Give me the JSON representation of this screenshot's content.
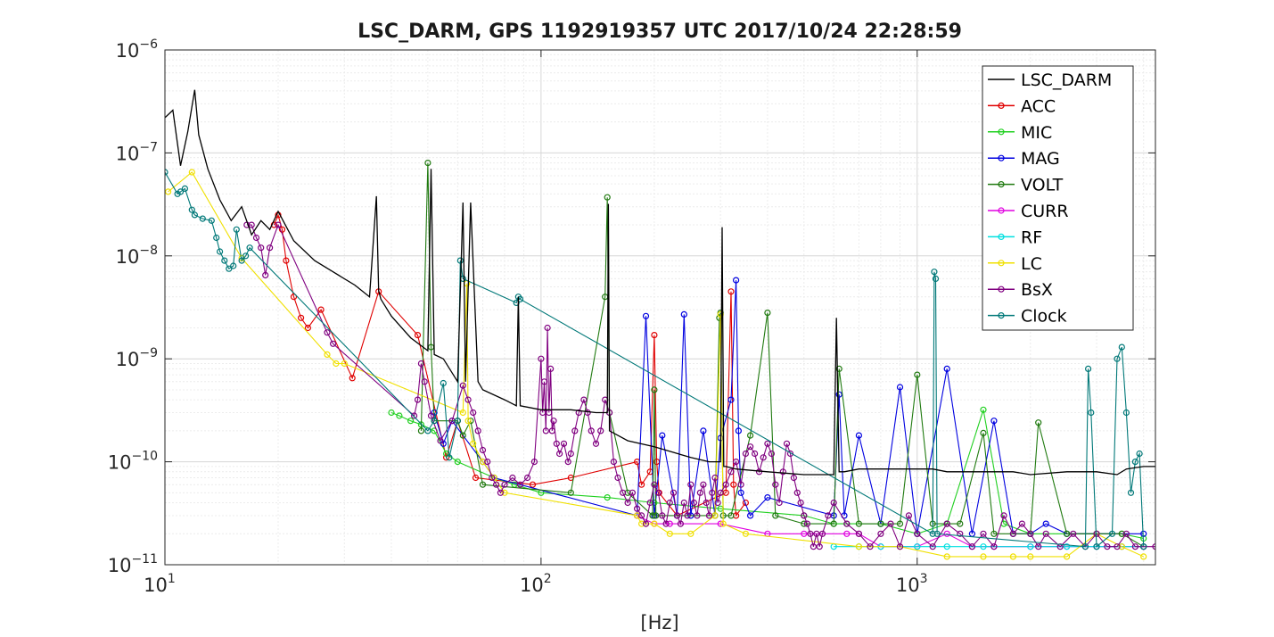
{
  "chart_data": {
    "type": "line",
    "title": "LSC_DARM, GPS 1192919357 UTC 2017/10/24 22:28:59",
    "xlabel": "[Hz]",
    "ylabel": "",
    "x_scale": "log",
    "y_scale": "log",
    "xlim": [
      10,
      4300
    ],
    "ylim": [
      1e-11,
      1e-06
    ],
    "grid": true,
    "legend_position": "top-right",
    "x_ticks": [
      {
        "value": 10,
        "base": "10",
        "exp": "1"
      },
      {
        "value": 100,
        "base": "10",
        "exp": "2"
      },
      {
        "value": 1000,
        "base": "10",
        "exp": "3"
      }
    ],
    "y_ticks": [
      {
        "value": 1e-11,
        "base": "10",
        "exp": "−11"
      },
      {
        "value": 1e-10,
        "base": "10",
        "exp": "−10"
      },
      {
        "value": 1e-09,
        "base": "10",
        "exp": "−9"
      },
      {
        "value": 1e-08,
        "base": "10",
        "exp": "−8"
      },
      {
        "value": 1e-07,
        "base": "10",
        "exp": "−7"
      },
      {
        "value": 1e-06,
        "base": "10",
        "exp": "−6"
      }
    ],
    "series": [
      {
        "name": "LSC_DARM",
        "color": "#000000",
        "marker": "none",
        "x": [
          10,
          10.5,
          11,
          11.5,
          12,
          12.3,
          13,
          14,
          15,
          16,
          17,
          18,
          19,
          20,
          22,
          25,
          28,
          32,
          35,
          36.5,
          37,
          37.5,
          40,
          45,
          50,
          51,
          52,
          55,
          60,
          62,
          63,
          65,
          68,
          70,
          80,
          86,
          87,
          88,
          100,
          120,
          140,
          150,
          151,
          152,
          170,
          200,
          250,
          280,
          300,
          303,
          306,
          310,
          330,
          400,
          500,
          560,
          600,
          610,
          620,
          640,
          700,
          800,
          1000,
          1100,
          1200,
          1400,
          1500,
          1800,
          2000,
          2500,
          2700,
          3000,
          3400,
          3600,
          4000,
          4300
        ],
        "y": [
          2.2e-07,
          2.6e-07,
          7.5e-08,
          1.6e-07,
          4.1e-07,
          1.5e-07,
          7e-08,
          3.5e-08,
          2.2e-08,
          3e-08,
          1.6e-08,
          2.2e-08,
          1.8e-08,
          2.7e-08,
          1.4e-08,
          9e-09,
          7e-09,
          5.2e-09,
          4e-09,
          3.8e-08,
          4.6e-09,
          3.8e-09,
          2.6e-09,
          1.6e-09,
          1.2e-09,
          7e-08,
          1.1e-09,
          1e-09,
          6e-10,
          3.3e-08,
          6e-10,
          3.3e-08,
          6e-10,
          5e-10,
          4e-10,
          3.5e-10,
          4e-09,
          3.5e-10,
          3.2e-10,
          3.2e-10,
          3e-10,
          3e-10,
          3.2e-08,
          2e-10,
          1.6e-10,
          1.4e-10,
          1.1e-10,
          1e-10,
          1e-10,
          1.9e-08,
          9e-11,
          9e-11,
          8.5e-11,
          8e-11,
          7.5e-11,
          7.5e-11,
          7.5e-11,
          2.5e-09,
          8e-11,
          8e-11,
          8.5e-11,
          8.5e-11,
          8.5e-11,
          8.5e-11,
          8e-11,
          8e-11,
          8e-11,
          8e-11,
          7.5e-11,
          8e-11,
          8e-11,
          8e-11,
          7.5e-11,
          8.5e-11,
          9e-11,
          9e-11
        ]
      },
      {
        "name": "ACC",
        "color": "#e00000",
        "marker": "circle",
        "x": [
          19.5,
          20,
          20.5,
          21,
          22,
          23,
          24,
          26,
          31.5,
          37,
          47,
          56,
          60,
          67,
          95,
          120,
          180,
          185,
          195,
          200,
          203,
          206,
          230,
          310,
          320,
          325,
          330,
          350
        ],
        "y": [
          2e-08,
          2.5e-08,
          1.8e-08,
          9e-09,
          4e-09,
          2.5e-09,
          2e-09,
          3e-09,
          6.5e-10,
          4.5e-09,
          1.7e-09,
          1.1e-10,
          2.5e-10,
          7e-11,
          6e-11,
          7e-11,
          1e-10,
          6e-11,
          8e-11,
          1.7e-09,
          1e-10,
          5e-11,
          3e-11,
          5e-11,
          4.5e-09,
          6e-11,
          3e-11,
          4e-11
        ]
      },
      {
        "name": "MIC",
        "color": "#20d020",
        "marker": "circle",
        "x": [
          40,
          42,
          45,
          48,
          52,
          56,
          60,
          75,
          85,
          100,
          150,
          200,
          300,
          500,
          600,
          650,
          800,
          1000,
          1200,
          1500,
          1700,
          2000,
          2500,
          3000,
          3500,
          4000
        ],
        "y": [
          3e-10,
          2.8e-10,
          2.5e-10,
          2.3e-10,
          2e-10,
          1.2e-10,
          1e-10,
          7e-11,
          6e-11,
          5e-11,
          4.5e-11,
          4e-11,
          3.5e-11,
          3e-11,
          2.5e-11,
          2.5e-11,
          2.5e-11,
          2e-11,
          2.5e-11,
          3.2e-10,
          2.5e-11,
          2e-11,
          2e-11,
          2e-11,
          2e-11,
          1.8e-11
        ]
      },
      {
        "name": "MAG",
        "color": "#0000e0",
        "marker": "circle",
        "x": [
          52,
          55,
          58,
          70,
          75,
          180,
          190,
          200,
          210,
          230,
          240,
          250,
          270,
          290,
          300,
          320,
          330,
          335,
          340,
          360,
          400,
          600,
          620,
          640,
          700,
          800,
          900,
          1000,
          1200,
          1400,
          1600,
          1800,
          2000,
          2200,
          2500,
          3000,
          4000
        ],
        "y": [
          3e-10,
          1.5e-10,
          2.5e-10,
          1e-10,
          7e-11,
          3e-11,
          2.6e-09,
          3e-11,
          1.8e-10,
          3e-11,
          2.7e-09,
          3e-11,
          2e-10,
          3e-11,
          1.7e-10,
          4e-10,
          5.8e-09,
          2e-10,
          5e-11,
          3e-11,
          4.5e-11,
          3e-11,
          4.5e-10,
          3e-11,
          1.8e-10,
          2.5e-11,
          5.3e-10,
          2e-11,
          8e-10,
          2e-11,
          2.5e-10,
          2e-11,
          2e-11,
          2.5e-11,
          2e-11,
          2e-11,
          2e-11
        ]
      },
      {
        "name": "VOLT",
        "color": "#207a10",
        "marker": "circle",
        "x": [
          48,
          50,
          51,
          52,
          60,
          62,
          65,
          70,
          120,
          148,
          150,
          152,
          170,
          198,
          200,
          202,
          290,
          298,
          300,
          305,
          320,
          360,
          400,
          420,
          500,
          600,
          620,
          700,
          800,
          900,
          1000,
          1100,
          1200,
          1300,
          1500,
          1600,
          1800,
          2000,
          2100,
          2500,
          3000,
          3500,
          4000
        ],
        "y": [
          2e-10,
          8e-08,
          1.3e-09,
          2.5e-10,
          2.5e-10,
          1.8e-10,
          2.5e-10,
          6e-11,
          5e-11,
          4e-09,
          3.7e-08,
          3e-10,
          5e-11,
          3e-11,
          5e-10,
          3e-11,
          3e-11,
          2.5e-09,
          2.8e-09,
          3e-11,
          3e-11,
          1.8e-10,
          2.8e-09,
          3e-11,
          2.5e-11,
          2.5e-11,
          8e-10,
          2.5e-11,
          2.5e-11,
          2.5e-11,
          7e-10,
          2.5e-11,
          2.5e-11,
          2.5e-11,
          1.9e-10,
          2e-11,
          2e-11,
          2e-11,
          2.4e-10,
          2e-11,
          2e-11,
          2e-11,
          1.5e-11
        ]
      },
      {
        "name": "CURR",
        "color": "#e000e0",
        "marker": "circle",
        "x": [
          180,
          200,
          220,
          300,
          400,
          500,
          650,
          700,
          800,
          1000,
          1200,
          1400,
          1600,
          2000,
          2500,
          3000,
          3500,
          4000
        ],
        "y": [
          3e-11,
          2.5e-11,
          2.5e-11,
          2.5e-11,
          2e-11,
          2e-11,
          2e-11,
          2e-11,
          1.5e-11,
          1.5e-11,
          2e-11,
          1.5e-11,
          1.5e-11,
          1.5e-11,
          1.5e-11,
          1.5e-11,
          1.5e-11,
          1.5e-11
        ]
      },
      {
        "name": "RF",
        "color": "#00e0e0",
        "marker": "circle",
        "x": [
          600,
          700,
          800,
          1000,
          1200,
          1500,
          2000,
          2500,
          3000,
          3500,
          4000
        ],
        "y": [
          1.5e-11,
          1.5e-11,
          1.5e-11,
          1.5e-11,
          1.5e-11,
          1.5e-11,
          1.5e-11,
          1.5e-11,
          1.5e-11,
          1.5e-11,
          1.5e-11
        ]
      },
      {
        "name": "LC",
        "color": "#f0e000",
        "marker": "circle",
        "x": [
          10.2,
          11.8,
          16,
          27,
          28.5,
          30,
          62,
          63.5,
          64,
          66,
          70,
          75,
          80,
          180,
          185,
          190,
          200,
          220,
          250,
          290,
          300,
          305,
          350,
          700,
          900,
          1200,
          1500,
          1800,
          2000,
          2500,
          3000,
          3500,
          4000
        ],
        "y": [
          4.2e-08,
          6.5e-08,
          9.5e-09,
          1.1e-09,
          9e-10,
          9e-10,
          3e-10,
          5.4e-09,
          2.5e-10,
          1.5e-10,
          1e-10,
          7e-11,
          5e-11,
          3e-11,
          2.5e-11,
          2.5e-11,
          2.5e-11,
          2e-11,
          2e-11,
          3e-11,
          2.7e-09,
          2.5e-11,
          2e-11,
          1.5e-11,
          1.5e-11,
          1.2e-11,
          1.2e-11,
          1.2e-11,
          1.2e-11,
          1.2e-11,
          2e-11,
          1.5e-11,
          1.2e-11
        ]
      },
      {
        "name": "BsX",
        "color": "#800080",
        "marker": "circle",
        "x": [
          16.5,
          17,
          17.5,
          18,
          18.5,
          19,
          20,
          27,
          28,
          46,
          47,
          48,
          49,
          51,
          54,
          58,
          62,
          64,
          66,
          68,
          70,
          72,
          74,
          76,
          78,
          80,
          84,
          88,
          92,
          96,
          100,
          101,
          102,
          103,
          104,
          105,
          106,
          107,
          108,
          110,
          112,
          115,
          118,
          120,
          123,
          126,
          130,
          133,
          136,
          140,
          144,
          148,
          152,
          156,
          160,
          165,
          170,
          175,
          180,
          185,
          190,
          195,
          200,
          205,
          210,
          215,
          220,
          225,
          230,
          235,
          240,
          245,
          250,
          255,
          260,
          265,
          270,
          275,
          280,
          285,
          290,
          295,
          300,
          310,
          320,
          330,
          340,
          350,
          360,
          370,
          380,
          390,
          400,
          410,
          420,
          430,
          440,
          450,
          460,
          470,
          480,
          490,
          500,
          510,
          520,
          530,
          540,
          550,
          560,
          580,
          600,
          650,
          700,
          750,
          800,
          850,
          900,
          950,
          1000,
          1100,
          1200,
          1300,
          1400,
          1500,
          1600,
          1700,
          1800,
          1900,
          2000,
          2100,
          2200,
          2400,
          2600,
          2800,
          3000,
          3200,
          3400,
          3600,
          3800,
          4000,
          4300
        ],
        "y": [
          2e-08,
          2e-08,
          1.5e-08,
          1.2e-08,
          6.5e-09,
          1.2e-08,
          2e-08,
          1.8e-09,
          1.4e-09,
          2.8e-10,
          4e-10,
          9e-10,
          6e-10,
          2.8e-10,
          1.6e-10,
          2.5e-10,
          5.5e-10,
          4e-10,
          3e-10,
          2e-10,
          1.3e-10,
          1e-10,
          7e-11,
          6e-11,
          5e-11,
          6e-11,
          7e-11,
          6e-11,
          7e-11,
          1e-10,
          1e-09,
          3e-10,
          6e-10,
          2e-10,
          2e-09,
          3e-10,
          8e-10,
          2e-10,
          2.5e-10,
          1.5e-10,
          1.2e-10,
          1.5e-10,
          1e-10,
          1.2e-10,
          2e-10,
          3e-10,
          4e-10,
          3e-10,
          2e-10,
          1.5e-10,
          2e-10,
          4e-10,
          3e-10,
          1e-10,
          7e-11,
          5e-11,
          4e-11,
          5e-11,
          3.5e-11,
          3e-11,
          2.5e-11,
          4e-11,
          6e-11,
          5e-11,
          3e-11,
          2.5e-11,
          4e-11,
          5e-11,
          3e-11,
          2.5e-11,
          4e-11,
          3e-11,
          6e-11,
          4e-11,
          3e-11,
          5e-11,
          6e-11,
          4e-11,
          3e-11,
          5e-11,
          7e-11,
          4e-11,
          5e-11,
          6e-11,
          8e-11,
          1e-10,
          6e-11,
          1.2e-10,
          1.4e-10,
          1.2e-10,
          8e-11,
          1.1e-10,
          1.5e-10,
          1.2e-10,
          6e-11,
          4e-11,
          8e-11,
          1.5e-10,
          1.2e-10,
          7e-11,
          5e-11,
          4e-11,
          3e-11,
          2.5e-11,
          2e-11,
          1.5e-11,
          2e-11,
          1.5e-11,
          2e-11,
          3e-11,
          4e-11,
          2.5e-11,
          2e-11,
          1.5e-11,
          2e-11,
          2.5e-11,
          1.5e-11,
          3e-11,
          2e-11,
          1.5e-11,
          2.5e-11,
          2e-11,
          1.5e-11,
          2e-11,
          1.5e-11,
          3e-11,
          2e-11,
          2.5e-11,
          2e-11,
          1.5e-11,
          2e-11,
          1.5e-11,
          2e-11,
          1.5e-11,
          2e-11,
          1.5e-11,
          1.5e-11,
          2e-11,
          1.5e-11,
          1.5e-11,
          1.5e-11
        ]
      },
      {
        "name": "Clock",
        "color": "#007878",
        "marker": "circle",
        "x": [
          10,
          10.8,
          11,
          11.3,
          11.8,
          12,
          12.6,
          13.3,
          13.7,
          14,
          14.4,
          14.8,
          15.2,
          15.5,
          16,
          16.4,
          16.8,
          50,
          52,
          55,
          57,
          60,
          61,
          62,
          86,
          87,
          88,
          1100,
          1110,
          1120,
          1130,
          2800,
          2850,
          2900,
          3000,
          3300,
          3400,
          3500,
          3600,
          3700,
          3800,
          3900,
          4000
        ],
        "y": [
          6.5e-08,
          4e-08,
          4.2e-08,
          4.5e-08,
          2.8e-08,
          2.5e-08,
          2.3e-08,
          2.2e-08,
          1.5e-08,
          1.1e-08,
          9e-09,
          7.5e-09,
          8e-09,
          1.8e-08,
          9e-09,
          1e-08,
          1.2e-08,
          2e-10,
          2.5e-10,
          5.8e-10,
          1.1e-10,
          2.5e-10,
          9e-09,
          6e-09,
          3.5e-09,
          4e-09,
          3.8e-09,
          2e-11,
          7e-09,
          6e-09,
          2e-11,
          1.5e-11,
          8e-10,
          3e-10,
          1.5e-11,
          2e-11,
          1e-09,
          1.3e-09,
          3e-10,
          5e-11,
          1e-10,
          1.2e-10,
          1.5e-11
        ]
      }
    ]
  }
}
